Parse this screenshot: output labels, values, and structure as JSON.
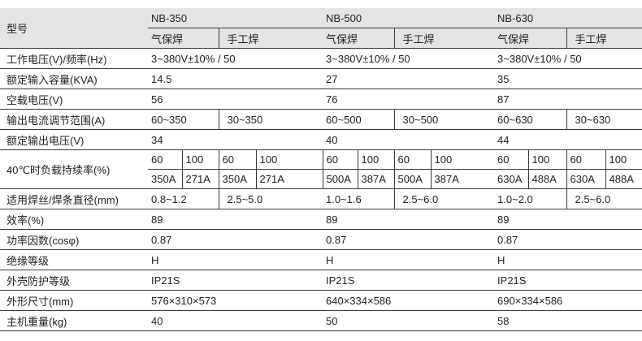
{
  "header": {
    "model_label": "型号",
    "models": [
      "NB-350",
      "NB-500",
      "NB-630"
    ],
    "modes": [
      "气保焊",
      "手工焊"
    ]
  },
  "rows": {
    "voltage": {
      "label": "工作电压(V)/频率(Hz)",
      "values": [
        "3~380V±10% / 50",
        "3~380V±10% / 50",
        "3~380V±10% / 50"
      ]
    },
    "capacity": {
      "label": "额定输入容量(KVA)",
      "values": [
        "14.5",
        "27",
        "35"
      ]
    },
    "noload": {
      "label": "空载电压(V)",
      "values": [
        "56",
        "76",
        "87"
      ]
    },
    "current_range": {
      "label": "输出电流调节范围(A)",
      "values": [
        [
          "60~350",
          "30~350"
        ],
        [
          "60~500",
          "30~500"
        ],
        [
          "60~630",
          "30~630"
        ]
      ]
    },
    "output_voltage": {
      "label": "额定输出电压(V)",
      "values": [
        "34",
        "40",
        "44"
      ]
    },
    "duty": {
      "label": "40℃时负载持续率(%)",
      "percent": [
        [
          "60",
          "100",
          "60",
          "100"
        ],
        [
          "60",
          "100",
          "60",
          "100"
        ],
        [
          "60",
          "100",
          "60",
          "100"
        ]
      ],
      "current": [
        [
          "350A",
          "271A",
          "350A",
          "271A"
        ],
        [
          "500A",
          "387A",
          "500A",
          "387A"
        ],
        [
          "630A",
          "488A",
          "630A",
          "488A"
        ]
      ]
    },
    "wire": {
      "label": "适用焊丝/焊条直径(mm)",
      "values": [
        [
          "0.8~1.2",
          "2.5~5.0"
        ],
        [
          "1.0~1.6",
          "2.5~6.0"
        ],
        [
          "1.0~2.0",
          "2.5~6.0"
        ]
      ]
    },
    "efficiency": {
      "label": "效率(%)",
      "values": [
        "89",
        "89",
        "89"
      ]
    },
    "power_factor": {
      "label": "功率因数(cosφ)",
      "values": [
        "0.87",
        "0.87",
        "0.87"
      ]
    },
    "insulation": {
      "label": "绝缘等级",
      "values": [
        "H",
        "H",
        "H"
      ]
    },
    "protection": {
      "label": "外壳防护等级",
      "values": [
        "IP21S",
        "IP21S",
        "IP21S"
      ]
    },
    "dimensions": {
      "label": "外形尺寸(mm)",
      "values": [
        "576×310×573",
        "640×334×586",
        "690×334×586"
      ]
    },
    "weight": {
      "label": "主机重量(kg)",
      "values": [
        "40",
        "50",
        "58"
      ]
    }
  }
}
